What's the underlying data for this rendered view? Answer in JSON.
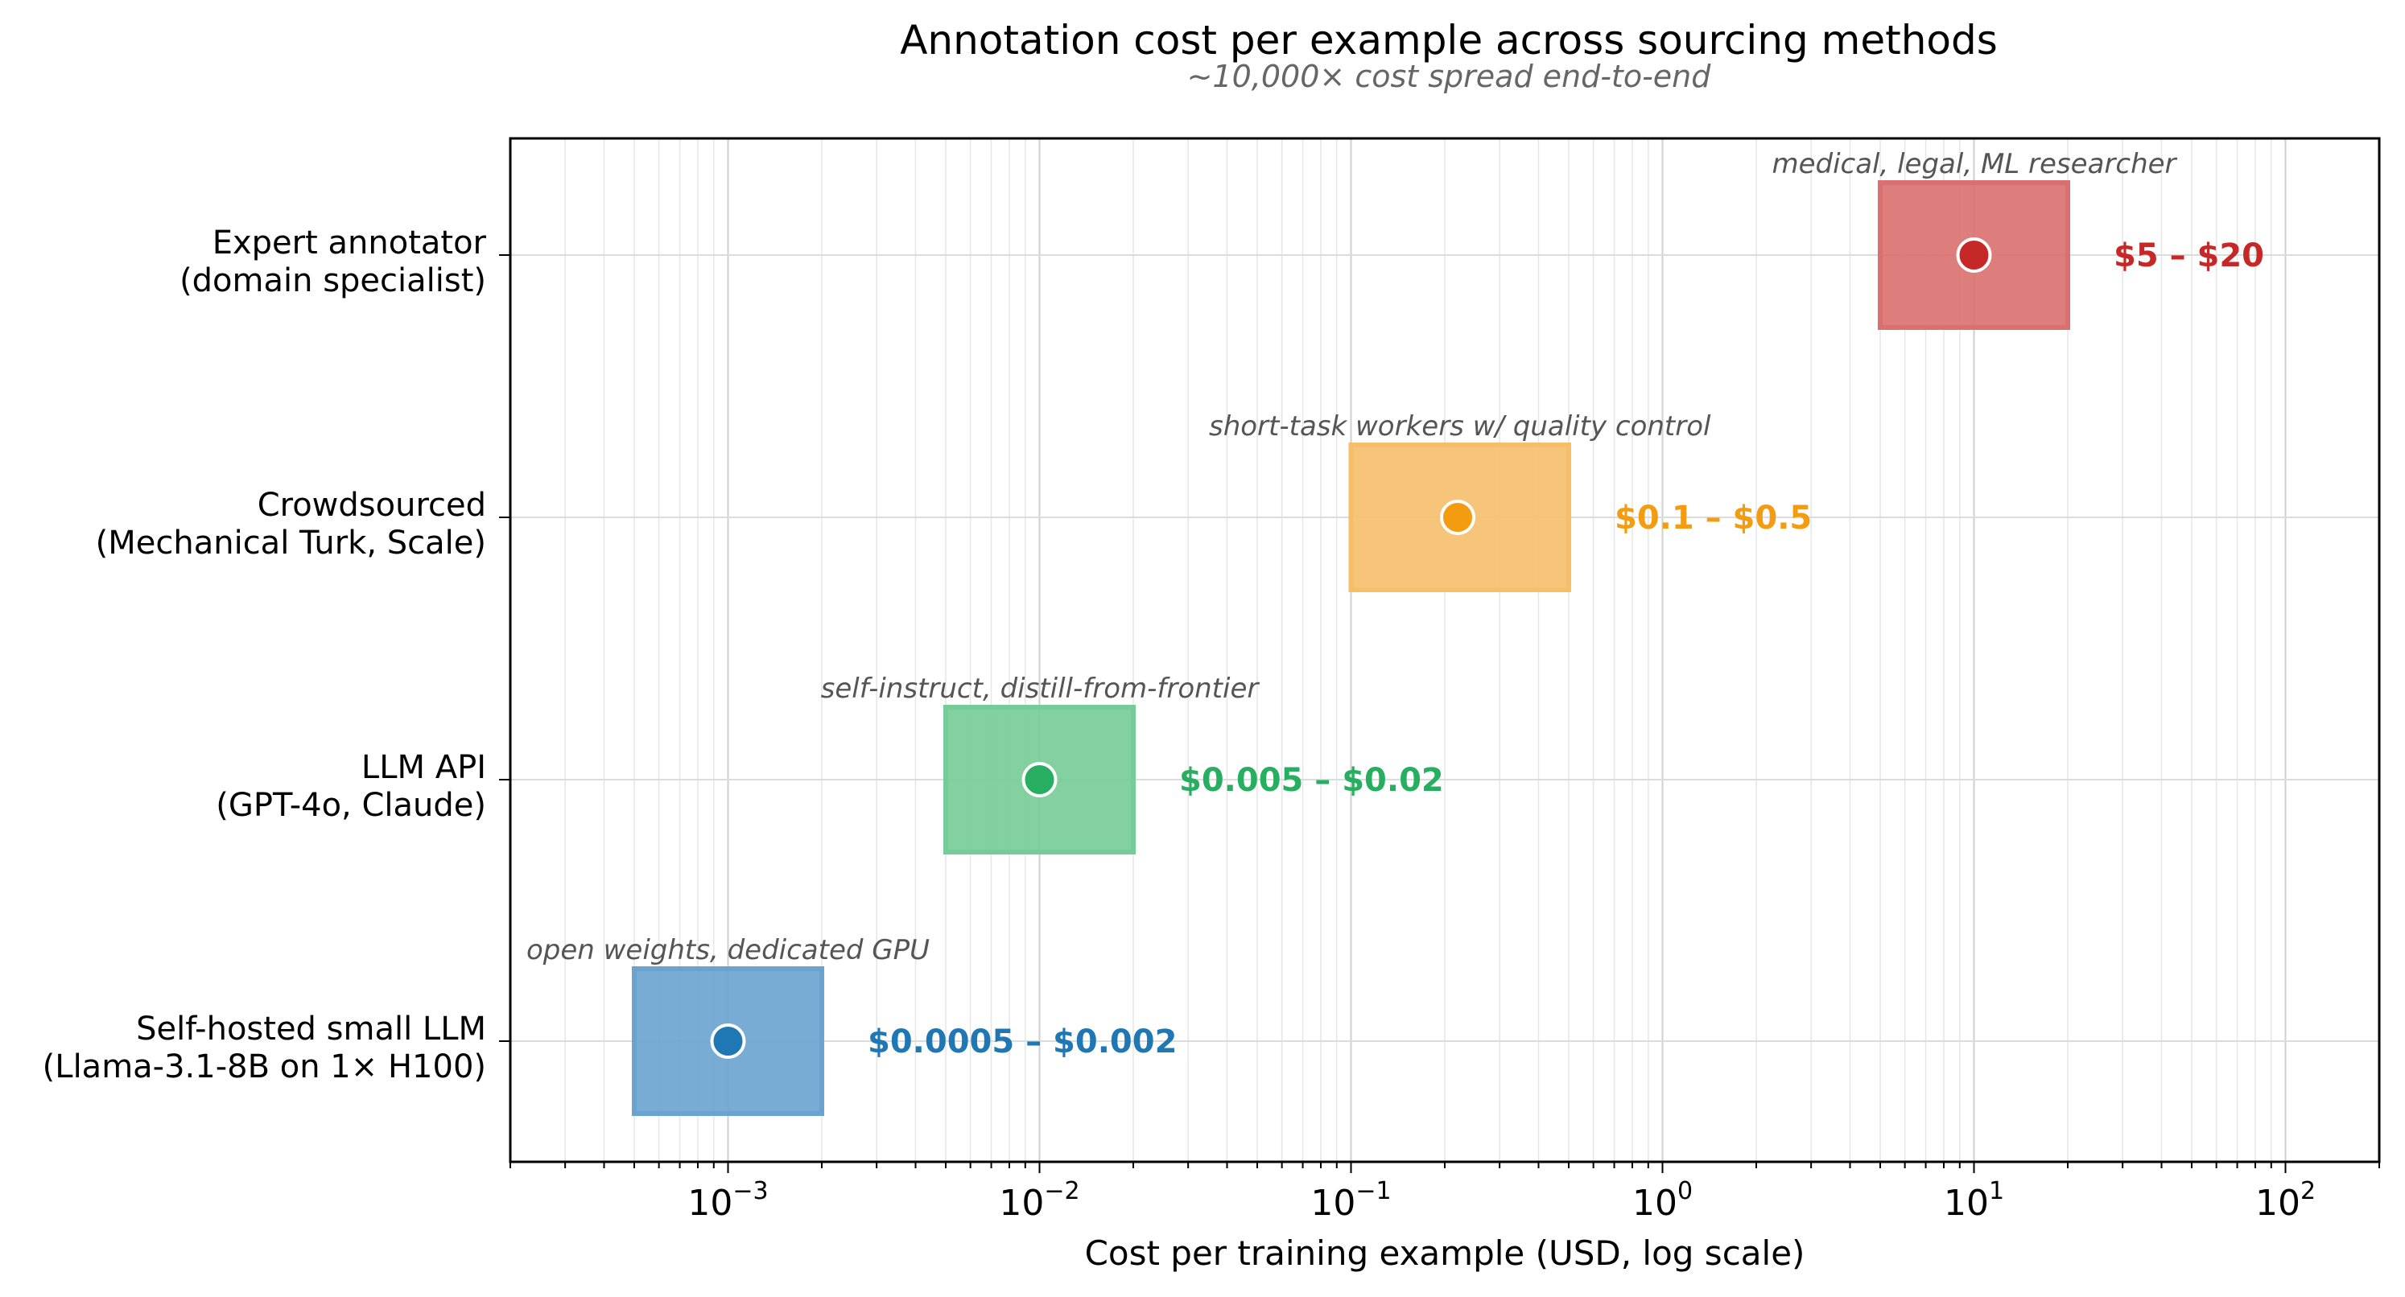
{
  "chart_data": {
    "type": "range",
    "title": "Annotation cost per example across sourcing methods",
    "subtitle": "~10,000× cost spread end-to-end",
    "xlabel": "Cost per training example (USD, log scale)",
    "ylabel": "",
    "xscale": "log",
    "xlim": [
      0.0002,
      200
    ],
    "xticks": [
      {
        "value": 0.001,
        "base": "10",
        "exp": "−3"
      },
      {
        "value": 0.01,
        "base": "10",
        "exp": "−2"
      },
      {
        "value": 0.1,
        "base": "10",
        "exp": "−1"
      },
      {
        "value": 1,
        "base": "10",
        "exp": "0"
      },
      {
        "value": 10,
        "base": "10",
        "exp": "1"
      },
      {
        "value": 100,
        "base": "10",
        "exp": "2"
      }
    ],
    "grid": true,
    "categories": [
      {
        "line1": "Expert annotator",
        "line2": "(domain specialist)",
        "low": 5,
        "high": 20,
        "point": 10,
        "range_label": "$5 – $20",
        "note": "medical, legal, ML researcher",
        "color": "#c62828",
        "fill": "#d9706f"
      },
      {
        "line1": "Crowdsourced",
        "line2": "(Mechanical Turk, Scale)",
        "low": 0.1,
        "high": 0.5,
        "point": 0.22,
        "range_label": "$0.1 – $0.5",
        "note": "short-task workers w/ quality control",
        "color": "#f39c12",
        "fill": "#f5bf6a"
      },
      {
        "line1": "LLM API",
        "line2": "(GPT-4o, Claude)",
        "low": 0.005,
        "high": 0.02,
        "point": 0.01,
        "range_label": "$0.005 – $0.02",
        "note": "self-instruct, distill-from-frontier",
        "color": "#27ae60",
        "fill": "#76cc97"
      },
      {
        "line1": "Self-hosted small LLM",
        "line2": "(Llama-3.1-8B on 1× H100)",
        "low": 0.0005,
        "high": 0.002,
        "point": 0.001,
        "range_label": "$0.0005 – $0.002",
        "note": "open weights, dedicated GPU",
        "color": "#1f77b4",
        "fill": "#6aa3cf"
      }
    ]
  }
}
